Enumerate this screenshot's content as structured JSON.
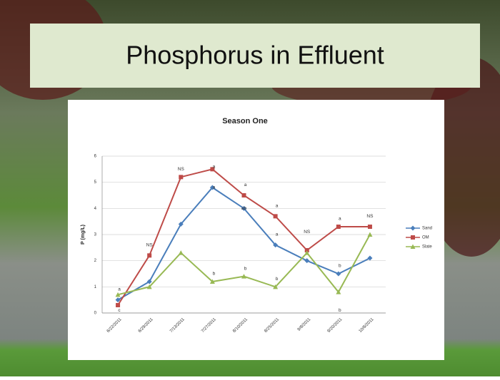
{
  "slide_title": "Phosphorus in Effluent",
  "chart_data": {
    "type": "line",
    "title": "Season One",
    "y_label": "P (mg/L)",
    "categories": [
      "6/22/2011",
      "6/29/2011",
      "7/13/2011",
      "7/27/2011",
      "8/10/2011",
      "8/25/2011",
      "9/8/2011",
      "9/20/2011",
      "10/6/2011"
    ],
    "series": [
      {
        "name": "Sand",
        "color": "#4a7ebb",
        "marker": "diamond",
        "values": [
          0.5,
          1.2,
          3.4,
          4.8,
          4.0,
          2.6,
          2.0,
          1.5,
          2.1
        ]
      },
      {
        "name": "OM",
        "color": "#be4b48",
        "marker": "square",
        "values": [
          0.3,
          2.2,
          5.2,
          5.5,
          4.5,
          3.7,
          2.4,
          3.3,
          3.3
        ]
      },
      {
        "name": "Slate",
        "color": "#98b954",
        "marker": "triangle",
        "values": [
          0.7,
          1.0,
          2.3,
          1.2,
          1.4,
          1.0,
          2.3,
          0.8,
          3.0
        ]
      }
    ],
    "ylim": [
      0,
      6
    ],
    "yticks": [
      0,
      1,
      2,
      3,
      4,
      5,
      6
    ],
    "grid": true,
    "legend": "right",
    "annotations": [
      {
        "text": "a",
        "category": 0,
        "y": 0.9
      },
      {
        "text": "c",
        "category": 0,
        "y": 0.1
      },
      {
        "text": "NS",
        "category": 1,
        "y": 2.6
      },
      {
        "text": "NS",
        "category": 2,
        "y": 5.5
      },
      {
        "text": "a",
        "category": 3,
        "y": 5.6
      },
      {
        "text": "a",
        "category": 3,
        "y": 4.8
      },
      {
        "text": "b",
        "category": 3,
        "y": 1.5
      },
      {
        "text": "a",
        "category": 4,
        "y": 4.9
      },
      {
        "text": "ab",
        "category": 4,
        "y": 4.0
      },
      {
        "text": "b",
        "category": 4,
        "y": 1.7
      },
      {
        "text": "a",
        "category": 5,
        "y": 4.1
      },
      {
        "text": "a",
        "category": 5,
        "y": 3.0
      },
      {
        "text": "b",
        "category": 5,
        "y": 1.3
      },
      {
        "text": "NS",
        "category": 6,
        "y": 3.1
      },
      {
        "text": "a",
        "category": 7,
        "y": 3.6
      },
      {
        "text": "b",
        "category": 7,
        "y": 1.8
      },
      {
        "text": "b",
        "category": 7,
        "y": 0.1
      },
      {
        "text": "NS",
        "category": 8,
        "y": 3.7
      }
    ]
  }
}
